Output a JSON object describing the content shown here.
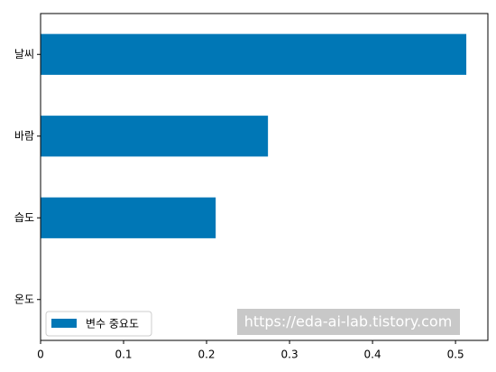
{
  "chart_data": {
    "type": "barh",
    "categories": [
      "온도",
      "습도",
      "바람",
      "날씨"
    ],
    "series": [
      {
        "name": "변수 중요도",
        "color": "#0077b6",
        "values": [
          0,
          0.211,
          0.274,
          0.513
        ]
      }
    ],
    "xlim": [
      0,
      0.539
    ],
    "xticks": [
      0.0,
      0.1,
      0.2,
      0.3,
      0.4,
      0.5
    ],
    "legend": "lower left",
    "watermark": "https://eda-ai-lab.tistory.com"
  }
}
